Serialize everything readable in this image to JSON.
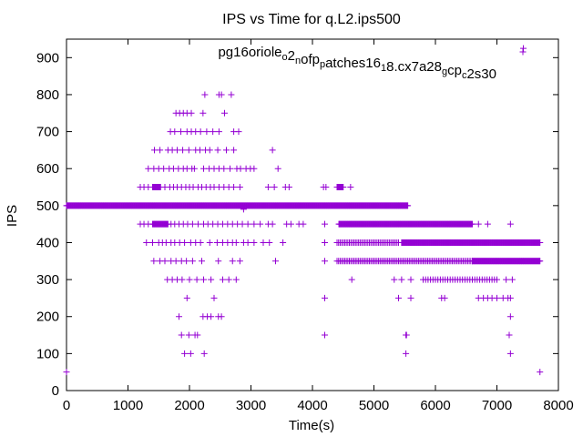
{
  "chart_data": {
    "type": "scatter",
    "title": "IPS vs Time for q.L2.ips500",
    "xlabel": "Time(s)",
    "ylabel": "IPS",
    "xlim": [
      0,
      8000
    ],
    "ylim": [
      0,
      950
    ],
    "xticks": [
      0,
      1000,
      2000,
      3000,
      4000,
      5000,
      6000,
      7000,
      8000
    ],
    "yticks": [
      0,
      100,
      200,
      300,
      400,
      500,
      600,
      700,
      800,
      900
    ],
    "grid": false,
    "legend_position": "top-right",
    "marker": "+",
    "color": "#9400d3",
    "series": [
      {
        "name": "pg16oriole_o2_nofp_patches16_18.cx7a28_gcp_c2s30",
        "name_display": {
          "parts": [
            {
              "t": "pg16oriole",
              "sub": false
            },
            {
              "t": "o",
              "sub": true
            },
            {
              "t": "2",
              "sub": false
            },
            {
              "t": "n",
              "sub": true
            },
            {
              "t": "ofp",
              "sub": false
            },
            {
              "t": "p",
              "sub": true
            },
            {
              "t": "atches16",
              "sub": false
            },
            {
              "t": "1",
              "sub": true
            },
            {
              "t": "8.cx7a28",
              "sub": false
            },
            {
              "t": "g",
              "sub": true
            },
            {
              "t": "cp",
              "sub": false
            },
            {
              "t": "c",
              "sub": true
            },
            {
              "t": "2s30",
              "sub": false
            }
          ]
        },
        "dense_runs": [
          {
            "y": 500,
            "x_from": 0,
            "x_to": 5550,
            "step": 10
          },
          {
            "y": 450,
            "x_from": 4430,
            "x_to": 6600,
            "step": 10
          },
          {
            "y": 400,
            "x_from": 5450,
            "x_to": 7700,
            "step": 10
          },
          {
            "y": 350,
            "x_from": 6600,
            "x_to": 7700,
            "step": 10
          },
          {
            "y": 550,
            "x_from": 1400,
            "x_to": 1530,
            "step": 10
          },
          {
            "y": 550,
            "x_from": 4400,
            "x_to": 4500,
            "step": 10
          },
          {
            "y": 450,
            "x_from": 1400,
            "x_to": 1650,
            "step": 10
          },
          {
            "y": 400,
            "x_from": 4400,
            "x_to": 5400,
            "step": 25
          },
          {
            "y": 350,
            "x_from": 4400,
            "x_to": 6600,
            "step": 25
          },
          {
            "y": 300,
            "x_from": 5800,
            "x_to": 7000,
            "step": 40
          }
        ],
        "points": [
          [
            0,
            50
          ],
          [
            7700,
            50
          ],
          [
            1920,
            100
          ],
          [
            2020,
            100
          ],
          [
            2240,
            100
          ],
          [
            5520,
            100
          ],
          [
            7220,
            100
          ],
          [
            1870,
            150
          ],
          [
            1990,
            150
          ],
          [
            2090,
            150
          ],
          [
            2130,
            150
          ],
          [
            4200,
            150
          ],
          [
            5520,
            150
          ],
          [
            5530,
            150
          ],
          [
            7200,
            150
          ],
          [
            1830,
            200
          ],
          [
            2220,
            200
          ],
          [
            2290,
            200
          ],
          [
            2350,
            200
          ],
          [
            2470,
            200
          ],
          [
            2520,
            200
          ],
          [
            7220,
            200
          ],
          [
            1960,
            250
          ],
          [
            2400,
            250
          ],
          [
            4200,
            250
          ],
          [
            5400,
            250
          ],
          [
            5600,
            250
          ],
          [
            6100,
            250
          ],
          [
            6150,
            250
          ],
          [
            6700,
            250
          ],
          [
            6780,
            250
          ],
          [
            6850,
            250
          ],
          [
            6920,
            250
          ],
          [
            7000,
            250
          ],
          [
            7100,
            250
          ],
          [
            7180,
            250
          ],
          [
            7220,
            250
          ],
          [
            1640,
            300
          ],
          [
            1720,
            300
          ],
          [
            1800,
            300
          ],
          [
            1880,
            300
          ],
          [
            2000,
            300
          ],
          [
            2120,
            300
          ],
          [
            2230,
            300
          ],
          [
            2350,
            300
          ],
          [
            2540,
            300
          ],
          [
            2640,
            300
          ],
          [
            2760,
            300
          ],
          [
            4640,
            300
          ],
          [
            5330,
            300
          ],
          [
            5450,
            300
          ],
          [
            5600,
            300
          ],
          [
            7150,
            300
          ],
          [
            7250,
            300
          ],
          [
            1420,
            350
          ],
          [
            1520,
            350
          ],
          [
            1600,
            350
          ],
          [
            1700,
            350
          ],
          [
            1780,
            350
          ],
          [
            1870,
            350
          ],
          [
            1950,
            350
          ],
          [
            2050,
            350
          ],
          [
            2200,
            350
          ],
          [
            2470,
            350
          ],
          [
            2700,
            350
          ],
          [
            2820,
            350
          ],
          [
            3400,
            350
          ],
          [
            4200,
            350
          ],
          [
            1300,
            400
          ],
          [
            1400,
            400
          ],
          [
            1500,
            400
          ],
          [
            1560,
            400
          ],
          [
            1620,
            400
          ],
          [
            1700,
            400
          ],
          [
            1760,
            400
          ],
          [
            1840,
            400
          ],
          [
            1920,
            400
          ],
          [
            2020,
            400
          ],
          [
            2100,
            400
          ],
          [
            2180,
            400
          ],
          [
            2330,
            400
          ],
          [
            2450,
            400
          ],
          [
            2540,
            400
          ],
          [
            2620,
            400
          ],
          [
            2700,
            400
          ],
          [
            2760,
            400
          ],
          [
            2880,
            400
          ],
          [
            2950,
            400
          ],
          [
            3050,
            400
          ],
          [
            3200,
            400
          ],
          [
            3300,
            400
          ],
          [
            3520,
            400
          ],
          [
            4200,
            400
          ],
          [
            1200,
            450
          ],
          [
            1260,
            450
          ],
          [
            1330,
            450
          ],
          [
            1700,
            450
          ],
          [
            1760,
            450
          ],
          [
            1830,
            450
          ],
          [
            1900,
            450
          ],
          [
            1970,
            450
          ],
          [
            2050,
            450
          ],
          [
            2140,
            450
          ],
          [
            2230,
            450
          ],
          [
            2300,
            450
          ],
          [
            2380,
            450
          ],
          [
            2460,
            450
          ],
          [
            2540,
            450
          ],
          [
            2620,
            450
          ],
          [
            2700,
            450
          ],
          [
            2780,
            450
          ],
          [
            2860,
            450
          ],
          [
            2950,
            450
          ],
          [
            3050,
            450
          ],
          [
            3150,
            450
          ],
          [
            3280,
            450
          ],
          [
            3350,
            450
          ],
          [
            3580,
            450
          ],
          [
            3650,
            450
          ],
          [
            3780,
            450
          ],
          [
            3850,
            450
          ],
          [
            4200,
            450
          ],
          [
            6700,
            450
          ],
          [
            6850,
            450
          ],
          [
            7220,
            450
          ],
          [
            2880,
            490
          ],
          [
            1200,
            550
          ],
          [
            1260,
            550
          ],
          [
            1330,
            550
          ],
          [
            1600,
            550
          ],
          [
            1680,
            550
          ],
          [
            1740,
            550
          ],
          [
            1800,
            550
          ],
          [
            1870,
            550
          ],
          [
            1940,
            550
          ],
          [
            2000,
            550
          ],
          [
            2060,
            550
          ],
          [
            2140,
            550
          ],
          [
            2200,
            550
          ],
          [
            2270,
            550
          ],
          [
            2340,
            550
          ],
          [
            2400,
            550
          ],
          [
            2480,
            550
          ],
          [
            2560,
            550
          ],
          [
            2640,
            550
          ],
          [
            2720,
            550
          ],
          [
            2820,
            550
          ],
          [
            3280,
            550
          ],
          [
            3380,
            550
          ],
          [
            3560,
            550
          ],
          [
            3620,
            550
          ],
          [
            4180,
            550
          ],
          [
            4220,
            550
          ],
          [
            4620,
            550
          ],
          [
            1330,
            600
          ],
          [
            1420,
            600
          ],
          [
            1500,
            600
          ],
          [
            1580,
            600
          ],
          [
            1670,
            600
          ],
          [
            1740,
            600
          ],
          [
            1820,
            600
          ],
          [
            1900,
            600
          ],
          [
            1960,
            600
          ],
          [
            2040,
            600
          ],
          [
            2080,
            600
          ],
          [
            2230,
            600
          ],
          [
            2320,
            600
          ],
          [
            2400,
            600
          ],
          [
            2480,
            600
          ],
          [
            2560,
            600
          ],
          [
            2660,
            600
          ],
          [
            2770,
            600
          ],
          [
            2830,
            600
          ],
          [
            2920,
            600
          ],
          [
            2990,
            600
          ],
          [
            3050,
            600
          ],
          [
            3440,
            600
          ],
          [
            1430,
            650
          ],
          [
            1520,
            650
          ],
          [
            1650,
            650
          ],
          [
            1720,
            650
          ],
          [
            1800,
            650
          ],
          [
            1890,
            650
          ],
          [
            1990,
            650
          ],
          [
            2100,
            650
          ],
          [
            2170,
            650
          ],
          [
            2260,
            650
          ],
          [
            2330,
            650
          ],
          [
            2460,
            650
          ],
          [
            2600,
            650
          ],
          [
            2720,
            650
          ],
          [
            3350,
            650
          ],
          [
            1690,
            700
          ],
          [
            1760,
            700
          ],
          [
            1860,
            700
          ],
          [
            1960,
            700
          ],
          [
            2030,
            700
          ],
          [
            2100,
            700
          ],
          [
            2180,
            700
          ],
          [
            2280,
            700
          ],
          [
            2380,
            700
          ],
          [
            2480,
            700
          ],
          [
            2720,
            700
          ],
          [
            2800,
            700
          ],
          [
            1780,
            750
          ],
          [
            1840,
            750
          ],
          [
            1900,
            750
          ],
          [
            1960,
            750
          ],
          [
            2030,
            750
          ],
          [
            2220,
            750
          ],
          [
            2570,
            750
          ],
          [
            2250,
            800
          ],
          [
            2480,
            800
          ],
          [
            2520,
            800
          ],
          [
            2680,
            800
          ],
          [
            7430,
            925
          ]
        ]
      }
    ]
  }
}
